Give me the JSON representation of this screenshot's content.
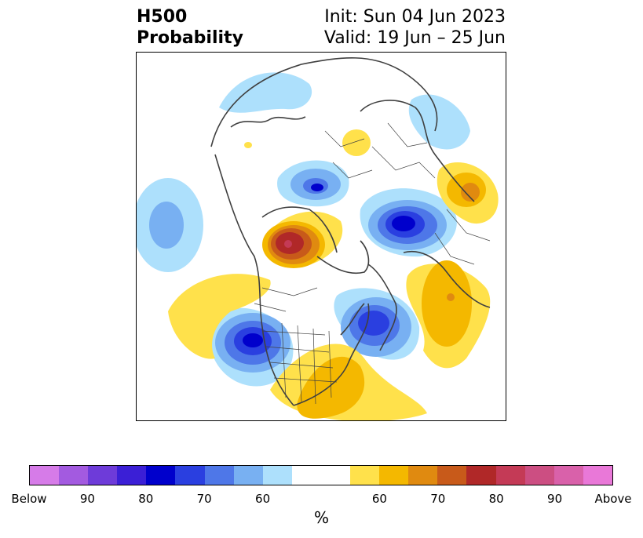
{
  "header": {
    "title_line1": "H500",
    "title_line2": "Probability",
    "init": "Init: Sun 04 Jun 2023",
    "valid": "Valid: 19 Jun – 25 Jun"
  },
  "map": {
    "below_colors": [
      "#d67be8",
      "#a35ae0",
      "#6e3bd9",
      "#3b1fd6",
      "#0000cc",
      "#2a3fe0",
      "#4e77e8",
      "#78b0f2",
      "#ade0fc"
    ],
    "neutral_color": "#ffffff",
    "above_colors": [
      "#ffe14b",
      "#f4b800",
      "#e08a10",
      "#c85a1a",
      "#b02828",
      "#c43a56",
      "#cc4e82",
      "#d961aa",
      "#e978d8"
    ],
    "coast_color": "#404040"
  },
  "colorbar": {
    "unit": "%",
    "labels": [
      "Below",
      "90",
      "80",
      "70",
      "60",
      "60",
      "70",
      "80",
      "90",
      "Above"
    ]
  }
}
